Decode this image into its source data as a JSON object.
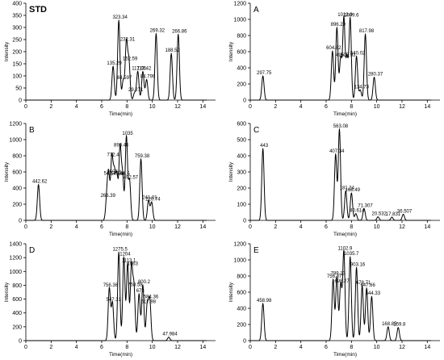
{
  "chart_data": [
    {
      "type": "line",
      "panel_label": "STD",
      "xlabel": "Time(min)",
      "ylabel": "Intensity",
      "xlim": [
        0,
        15
      ],
      "ylim": [
        0,
        400
      ],
      "xticks": [
        "0",
        "2",
        "4",
        "6",
        "8",
        "10",
        "12",
        "14"
      ],
      "yticks": [
        "0",
        "50",
        "100",
        "150",
        "200",
        "250",
        "300",
        "350",
        "400"
      ],
      "peaks": [
        {
          "x": 6.9,
          "y": 140,
          "label": "135.29"
        },
        {
          "x": 7.35,
          "y": 330,
          "label": "323.34"
        },
        {
          "x": 7.7,
          "y": 80,
          "label": "84.597"
        },
        {
          "x": 7.95,
          "y": 238,
          "label": "232.31"
        },
        {
          "x": 8.15,
          "y": 158,
          "label": "152.59"
        },
        {
          "x": 8.6,
          "y": 30,
          "label": "29.271"
        },
        {
          "x": 8.85,
          "y": 119,
          "label": "117.05"
        },
        {
          "x": 9.25,
          "y": 118,
          "label": "113.42"
        },
        {
          "x": 9.55,
          "y": 85,
          "label": "84.799"
        },
        {
          "x": 10.3,
          "y": 275,
          "label": "269.32"
        },
        {
          "x": 11.5,
          "y": 193,
          "label": "188.52"
        },
        {
          "x": 12.05,
          "y": 272,
          "label": "266.86"
        }
      ]
    },
    {
      "type": "line",
      "panel_label": "A",
      "xlabel": "Time(min)",
      "ylabel": "Intensity",
      "xlim": [
        0,
        15
      ],
      "ylim": [
        0,
        1200
      ],
      "xticks": [
        "0",
        "2",
        "4",
        "6",
        "8",
        "10",
        "12",
        "14"
      ],
      "yticks": [
        "0",
        "200",
        "400",
        "600",
        "800",
        "1000",
        "1200"
      ],
      "peaks": [
        {
          "x": 1.0,
          "y": 300,
          "label": "297.75"
        },
        {
          "x": 6.5,
          "y": 608,
          "label": "604.82"
        },
        {
          "x": 6.85,
          "y": 900,
          "label": "896.29"
        },
        {
          "x": 7.15,
          "y": 520,
          "label": "495.1"
        },
        {
          "x": 7.4,
          "y": 1020,
          "label": "1013.9"
        },
        {
          "x": 7.65,
          "y": 520,
          "label": "505.93"
        },
        {
          "x": 7.9,
          "y": 1015,
          "label": "1009.6"
        },
        {
          "x": 8.4,
          "y": 545,
          "label": "540.02"
        },
        {
          "x": 8.7,
          "y": 125,
          "label": "134.73"
        },
        {
          "x": 9.1,
          "y": 820,
          "label": "817.98"
        },
        {
          "x": 9.8,
          "y": 285,
          "label": "280.37"
        }
      ]
    },
    {
      "type": "line",
      "panel_label": "B",
      "xlabel": "Time(min)",
      "ylabel": "Intensity",
      "xlim": [
        0,
        15
      ],
      "ylim": [
        0,
        1200
      ],
      "xticks": [
        "0",
        "2",
        "4",
        "6",
        "8",
        "10",
        "12",
        "14"
      ],
      "yticks": [
        "0",
        "200",
        "400",
        "600",
        "800",
        "1000",
        "1200"
      ],
      "peaks": [
        {
          "x": 1.0,
          "y": 445,
          "label": "442.62"
        },
        {
          "x": 6.4,
          "y": 270,
          "label": "266.39"
        },
        {
          "x": 6.55,
          "y": 545,
          "label": "541.7"
        },
        {
          "x": 6.8,
          "y": 775,
          "label": "772.4"
        },
        {
          "x": 7.0,
          "y": 560,
          "label": "557.1"
        },
        {
          "x": 7.2,
          "y": 540,
          "label": "545.46"
        },
        {
          "x": 7.45,
          "y": 893,
          "label": "890.46"
        },
        {
          "x": 7.65,
          "y": 540,
          "label": "538.5"
        },
        {
          "x": 7.95,
          "y": 1040,
          "label": "1035"
        },
        {
          "x": 8.2,
          "y": 495,
          "label": "492.57"
        },
        {
          "x": 9.1,
          "y": 762,
          "label": "759.38"
        },
        {
          "x": 9.7,
          "y": 245,
          "label": "241.01"
        },
        {
          "x": 9.95,
          "y": 225,
          "label": "220.74"
        }
      ]
    },
    {
      "type": "line",
      "panel_label": "C",
      "xlabel": "Time(min)",
      "ylabel": "Intensity",
      "xlim": [
        0,
        15
      ],
      "ylim": [
        0,
        600
      ],
      "xticks": [
        "0",
        "2",
        "4",
        "6",
        "8",
        "10",
        "12",
        "14"
      ],
      "yticks": [
        "0",
        "100",
        "200",
        "300",
        "400",
        "500",
        "600"
      ],
      "peaks": [
        {
          "x": 1.0,
          "y": 445,
          "label": "443"
        },
        {
          "x": 6.75,
          "y": 410,
          "label": "407.34"
        },
        {
          "x": 7.05,
          "y": 565,
          "label": "563.08"
        },
        {
          "x": 7.55,
          "y": 183,
          "label": "181.24"
        },
        {
          "x": 8.0,
          "y": 170,
          "label": "168.49"
        },
        {
          "x": 8.35,
          "y": 42,
          "label": "40.614"
        },
        {
          "x": 9.0,
          "y": 73,
          "label": "71.307"
        },
        {
          "x": 10.1,
          "y": 22,
          "label": "20.532"
        },
        {
          "x": 11.2,
          "y": 20,
          "label": "17.831"
        },
        {
          "x": 12.1,
          "y": 38,
          "label": "36.507"
        }
      ]
    },
    {
      "type": "line",
      "panel_label": "D",
      "xlabel": "Time(min)",
      "ylabel": "Intensity",
      "xlim": [
        0,
        15
      ],
      "ylim": [
        0,
        1400
      ],
      "xticks": [
        "0",
        "2",
        "4",
        "6",
        "8",
        "10",
        "12",
        "14"
      ],
      "yticks": [
        "0",
        "200",
        "400",
        "600",
        "800",
        "1000",
        "1200",
        "1400"
      ],
      "peaks": [
        {
          "x": 6.6,
          "y": 760,
          "label": "756.36"
        },
        {
          "x": 6.85,
          "y": 550,
          "label": "547.31"
        },
        {
          "x": 7.35,
          "y": 1280,
          "label": "1275.5"
        },
        {
          "x": 7.75,
          "y": 1208,
          "label": "1204"
        },
        {
          "x": 8.05,
          "y": 1117,
          "label": "1113.1"
        },
        {
          "x": 8.35,
          "y": 1067,
          "label": "1063"
        },
        {
          "x": 8.55,
          "y": 762,
          "label": "758.58"
        },
        {
          "x": 8.95,
          "y": 676,
          "label": "673"
        },
        {
          "x": 9.25,
          "y": 804,
          "label": "800.2"
        },
        {
          "x": 9.6,
          "y": 520,
          "label": "517.98"
        },
        {
          "x": 9.8,
          "y": 588,
          "label": "584.36"
        },
        {
          "x": 11.3,
          "y": 50,
          "label": "47.984"
        }
      ]
    },
    {
      "type": "line",
      "panel_label": "E",
      "xlabel": "Time(min)",
      "ylabel": "Intensity",
      "xlim": [
        0,
        15
      ],
      "ylim": [
        0,
        1200
      ],
      "xticks": [
        "0",
        "2",
        "4",
        "6",
        "8",
        "10",
        "12",
        "14"
      ],
      "yticks": [
        "0",
        "200",
        "400",
        "600",
        "800",
        "1000",
        "1200"
      ],
      "peaks": [
        {
          "x": 1.0,
          "y": 462,
          "label": "458.98"
        },
        {
          "x": 6.55,
          "y": 760,
          "label": "756.37"
        },
        {
          "x": 6.85,
          "y": 793,
          "label": "789.13"
        },
        {
          "x": 7.15,
          "y": 700,
          "label": "698.27"
        },
        {
          "x": 7.4,
          "y": 1106,
          "label": "1102.9"
        },
        {
          "x": 7.9,
          "y": 1040,
          "label": "1035.7"
        },
        {
          "x": 8.4,
          "y": 907,
          "label": "903.16"
        },
        {
          "x": 8.85,
          "y": 682,
          "label": "678.71"
        },
        {
          "x": 9.2,
          "y": 652,
          "label": "647.66"
        },
        {
          "x": 9.6,
          "y": 548,
          "label": "544.33"
        },
        {
          "x": 10.9,
          "y": 172,
          "label": "168.85"
        },
        {
          "x": 11.7,
          "y": 163,
          "label": "159.8"
        }
      ]
    }
  ]
}
